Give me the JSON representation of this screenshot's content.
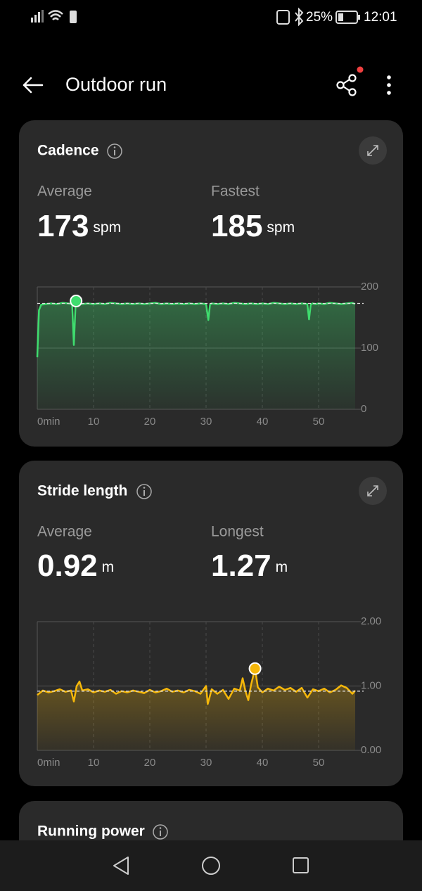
{
  "status_bar": {
    "battery": "25%",
    "time": "12:01"
  },
  "header": {
    "title": "Outdoor run"
  },
  "cards": [
    {
      "title": "Cadence",
      "stats": [
        {
          "label": "Average",
          "value": 173,
          "unit": "spm"
        },
        {
          "label": "Fastest",
          "value": 185,
          "unit": "spm"
        }
      ]
    },
    {
      "title": "Stride length",
      "stats": [
        {
          "label": "Average",
          "value": 0.92,
          "unit": "m"
        },
        {
          "label": "Longest",
          "value": 1.27,
          "unit": "m"
        }
      ]
    },
    {
      "title": "Running power"
    }
  ],
  "chart_data": [
    {
      "type": "line",
      "x": [
        0,
        0.3,
        0.7,
        1.5,
        2.5,
        3.5,
        4.5,
        5.5,
        6.2,
        6.5,
        6.8,
        6.9,
        7.3,
        8,
        9,
        10,
        11,
        12,
        13,
        14,
        15,
        16,
        17,
        18,
        19,
        20,
        21,
        22,
        23,
        24,
        25,
        26,
        27,
        28,
        29,
        30,
        30.4,
        30.7,
        31,
        32,
        33,
        34,
        35,
        36,
        37,
        38,
        39,
        40,
        41,
        42,
        43,
        44,
        45,
        46,
        47,
        48,
        48.3,
        48.6,
        48.9,
        49.5,
        50,
        51,
        52,
        53,
        54,
        55,
        56,
        56.5
      ],
      "series": [
        {
          "color": "#3fdc6e",
          "values": [
            85,
            162,
            171,
            172,
            173,
            172,
            174,
            173,
            172,
            105,
            170,
            177,
            173,
            172,
            173,
            172,
            173,
            172,
            174,
            173,
            172,
            173,
            172,
            173,
            172,
            173,
            174,
            172,
            173,
            172,
            173,
            172,
            173,
            172,
            173,
            172,
            146,
            171,
            173,
            172,
            173,
            172,
            174,
            173,
            172,
            173,
            172,
            173,
            172,
            174,
            173,
            172,
            173,
            172,
            173,
            172,
            147,
            171,
            173,
            172,
            173,
            172,
            174,
            173,
            172,
            173,
            174,
            172
          ]
        }
      ],
      "xlim": [
        0,
        56.5
      ],
      "xticks": [
        {
          "value": 0,
          "label": "0min"
        },
        10,
        20,
        30,
        40,
        50
      ],
      "ylim": [
        0,
        200
      ],
      "yticks": [
        0,
        100,
        200
      ],
      "grid": true
    },
    {
      "type": "line",
      "x": [
        0,
        1,
        2,
        3,
        4,
        5,
        6,
        6.5,
        7,
        7.5,
        8,
        9,
        10,
        11,
        12,
        13,
        14,
        15,
        16,
        17,
        18,
        19,
        20,
        21,
        22,
        23,
        24,
        25,
        26,
        27,
        28,
        29,
        30,
        30.3,
        31,
        32,
        33,
        34,
        35,
        36,
        36.5,
        37,
        37.5,
        38,
        38.7,
        39.2,
        40,
        41,
        42,
        43,
        44,
        45,
        46,
        47,
        48,
        49,
        50,
        51,
        52,
        53,
        54,
        55,
        56,
        56.5
      ],
      "series": [
        {
          "color": "#f5b70a",
          "values": [
            0.86,
            0.93,
            0.9,
            0.92,
            0.95,
            0.91,
            0.93,
            0.76,
            1.0,
            1.07,
            0.93,
            0.95,
            0.9,
            0.93,
            0.91,
            0.94,
            0.88,
            0.92,
            0.9,
            0.93,
            0.91,
            0.89,
            0.94,
            0.9,
            0.92,
            0.96,
            0.91,
            0.93,
            0.9,
            0.94,
            0.92,
            0.88,
            1.0,
            0.72,
            0.95,
            0.88,
            0.94,
            0.8,
            0.96,
            0.93,
            1.12,
            0.92,
            0.78,
            1.02,
            1.27,
            0.98,
            0.9,
            0.96,
            0.93,
            0.99,
            0.94,
            0.97,
            0.91,
            0.97,
            0.82,
            0.95,
            0.92,
            0.96,
            0.9,
            0.94,
            1.01,
            0.97,
            0.88,
            0.93
          ]
        }
      ],
      "xlim": [
        0,
        56.5
      ],
      "xticks": [
        {
          "value": 0,
          "label": "0min"
        },
        10,
        20,
        30,
        40,
        50
      ],
      "ylim": [
        0,
        2
      ],
      "yticks": [
        {
          "value": 0,
          "label": "0.00"
        },
        {
          "value": 1,
          "label": "1.00"
        },
        {
          "value": 2,
          "label": "2.00"
        }
      ],
      "grid": true
    }
  ]
}
